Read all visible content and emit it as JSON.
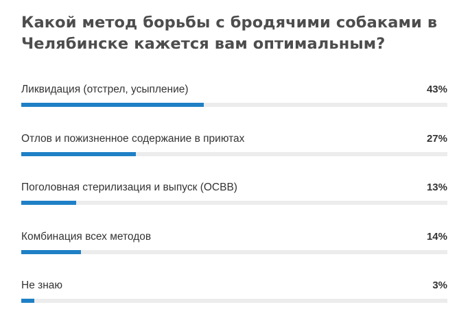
{
  "colors": {
    "bar": "#1f80c6",
    "track": "#ececec",
    "title": "#4d4d4d",
    "text": "#333333"
  },
  "chart_data": {
    "type": "bar",
    "orientation": "horizontal",
    "title": "Какой метод борьбы с бродячими собаками в Челябинске кажется вам оптимальным?",
    "unit": "%",
    "xlim": [
      0,
      100
    ],
    "grid": false,
    "categories": [
      "Ликвидация (отстрел, усыпление)",
      "Отлов и пожизненное содержание в приютах",
      "Поголовная стерилизация и выпуск (ОСВВ)",
      "Комбинация всех методов",
      "Не знаю"
    ],
    "values": [
      43,
      27,
      13,
      14,
      3
    ],
    "value_labels": [
      "43%",
      "27%",
      "13%",
      "14%",
      "3%"
    ]
  }
}
